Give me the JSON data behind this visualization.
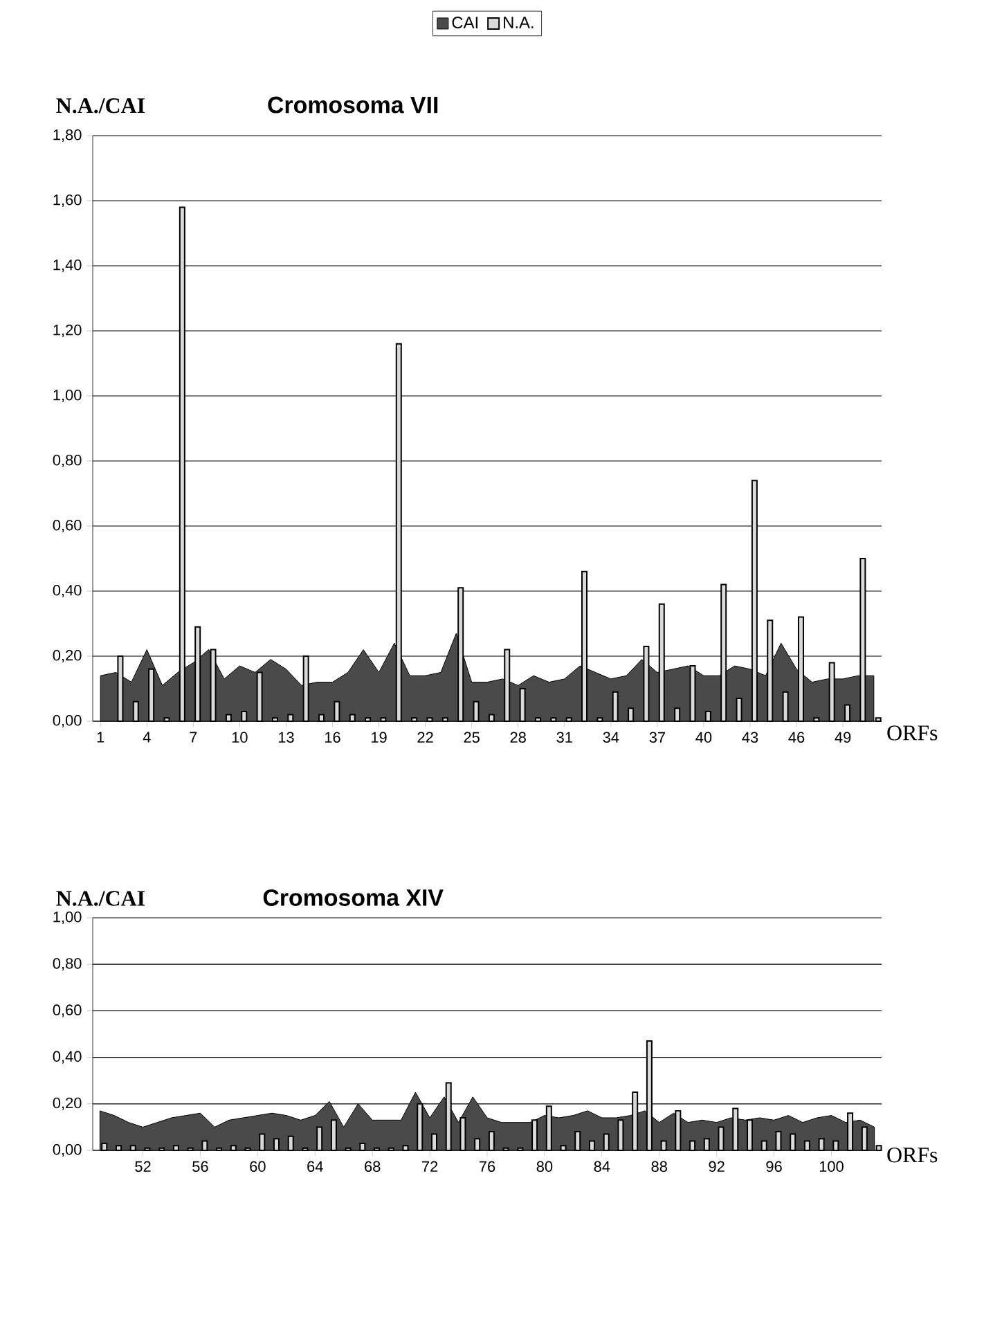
{
  "chart_data": [
    {
      "type": "bar",
      "title": "Cromosoma VII",
      "ylabel": "N.A./CAI",
      "xlabel": "ORFs",
      "grid": "y",
      "legend": "top",
      "categories": [
        "1",
        null,
        null,
        "4",
        null,
        null,
        "7",
        null,
        null,
        "10",
        null,
        null,
        "13",
        null,
        null,
        "16",
        null,
        null,
        "19",
        null,
        null,
        "22",
        null,
        null,
        "25",
        null,
        null,
        "28",
        null,
        null,
        "31",
        null,
        null,
        "34",
        null,
        null,
        "37",
        null,
        null,
        "40",
        null,
        null,
        "43",
        null,
        null,
        "46",
        null,
        null,
        "49",
        null,
        null
      ],
      "ylim": [
        0,
        1.8
      ],
      "yticks": [
        {
          "value": 0,
          "label": "0,00"
        },
        {
          "value": 0.2,
          "label": "0,20"
        },
        {
          "value": 0.4,
          "label": "0,40"
        },
        {
          "value": 0.6,
          "label": "0,60"
        },
        {
          "value": 0.8,
          "label": "0,80"
        },
        {
          "value": 1.0,
          "label": "1,00"
        },
        {
          "value": 1.2,
          "label": "1,20"
        },
        {
          "value": 1.4,
          "label": "1,40"
        },
        {
          "value": 1.6,
          "label": "1,60"
        },
        {
          "value": 1.8,
          "label": "1,80"
        }
      ],
      "series": [
        {
          "name": "CAI",
          "type": "area",
          "color": "#4a4a4a",
          "values": [
            0.14,
            0.15,
            0.12,
            0.22,
            0.11,
            0.15,
            0.18,
            0.22,
            0.13,
            0.17,
            0.15,
            0.19,
            0.16,
            0.11,
            0.12,
            0.12,
            0.15,
            0.22,
            0.15,
            0.24,
            0.14,
            0.14,
            0.15,
            0.27,
            0.12,
            0.12,
            0.13,
            0.11,
            0.14,
            0.12,
            0.13,
            0.17,
            0.15,
            0.13,
            0.14,
            0.19,
            0.15,
            0.16,
            0.17,
            0.14,
            0.14,
            0.17,
            0.16,
            0.14,
            0.24,
            0.16,
            0.12,
            0.13,
            0.13,
            0.14,
            0.14
          ]
        },
        {
          "name": "N.A.",
          "type": "bar",
          "color": "#d9d9d9",
          "values": [
            null,
            0.2,
            0.06,
            0.16,
            0.01,
            1.58,
            0.29,
            0.22,
            0.02,
            0.03,
            0.15,
            0.01,
            0.02,
            0.2,
            0.02,
            0.06,
            0.02,
            0.01,
            0.01,
            1.16,
            0.01,
            0.01,
            0.01,
            0.41,
            0.06,
            0.02,
            0.22,
            0.1,
            0.01,
            0.01,
            0.01,
            0.46,
            0.01,
            0.09,
            0.04,
            0.23,
            0.36,
            0.04,
            0.17,
            0.03,
            0.42,
            0.07,
            0.74,
            0.31,
            0.09,
            0.32,
            0.01,
            0.18,
            0.05,
            0.5,
            0.01
          ]
        }
      ]
    },
    {
      "type": "bar",
      "title": "Cromosoma XIV",
      "ylabel": "N.A./CAI",
      "xlabel": "ORFs",
      "grid": "y",
      "categories": [
        null,
        null,
        null,
        "52",
        null,
        null,
        null,
        "56",
        null,
        null,
        null,
        "60",
        null,
        null,
        null,
        "64",
        null,
        null,
        null,
        "68",
        null,
        null,
        null,
        "72",
        null,
        null,
        null,
        "76",
        null,
        null,
        null,
        "80",
        null,
        null,
        null,
        "84",
        null,
        null,
        null,
        "88",
        null,
        null,
        null,
        "92",
        null,
        null,
        null,
        "96",
        null,
        null,
        null,
        "100",
        null,
        null,
        null
      ],
      "ylim": [
        0,
        1.0
      ],
      "yticks": [
        {
          "value": 0,
          "label": "0,00"
        },
        {
          "value": 0.2,
          "label": "0,20"
        },
        {
          "value": 0.4,
          "label": "0,40"
        },
        {
          "value": 0.6,
          "label": "0,60"
        },
        {
          "value": 0.8,
          "label": "0,80"
        },
        {
          "value": 1.0,
          "label": "1,00"
        }
      ],
      "series": [
        {
          "type": "area",
          "color": "#4a4a4a",
          "values": [
            0.17,
            0.15,
            0.12,
            0.1,
            0.12,
            0.14,
            0.15,
            0.16,
            0.1,
            0.13,
            0.14,
            0.15,
            0.16,
            0.15,
            0.13,
            0.15,
            0.21,
            0.1,
            0.2,
            0.13,
            0.13,
            0.13,
            0.25,
            0.14,
            0.23,
            0.12,
            0.23,
            0.14,
            0.12,
            0.12,
            0.12,
            0.15,
            0.14,
            0.15,
            0.17,
            0.14,
            0.14,
            0.15,
            0.17,
            0.12,
            0.16,
            0.12,
            0.13,
            0.12,
            0.14,
            0.13,
            0.14,
            0.13,
            0.15,
            0.12,
            0.14,
            0.15,
            0.12,
            0.13,
            0.1
          ]
        },
        {
          "type": "bar",
          "color": "#d9d9d9",
          "values": [
            0.03,
            0.02,
            0.02,
            0.01,
            0.01,
            0.02,
            0.01,
            0.04,
            0.01,
            0.02,
            0.01,
            0.07,
            0.05,
            0.06,
            0.01,
            0.1,
            0.13,
            0.01,
            0.03,
            0.01,
            0.01,
            0.02,
            0.2,
            0.07,
            0.29,
            0.14,
            0.05,
            0.08,
            0.01,
            0.01,
            0.13,
            0.19,
            0.02,
            0.08,
            0.04,
            0.07,
            0.13,
            0.25,
            0.47,
            0.04,
            0.17,
            0.04,
            0.05,
            0.1,
            0.18,
            0.13,
            0.04,
            0.08,
            0.07,
            0.04,
            0.05,
            0.04,
            0.16,
            0.1,
            0.02
          ]
        }
      ]
    }
  ]
}
